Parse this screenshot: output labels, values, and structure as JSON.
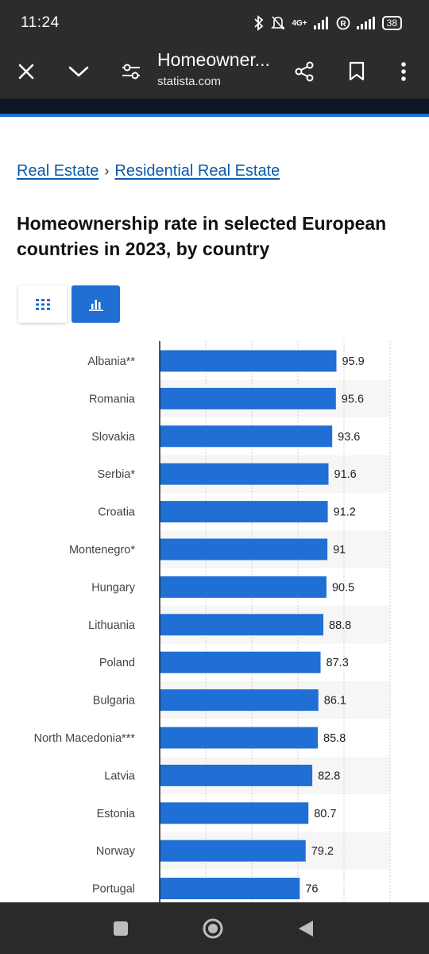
{
  "status_bar": {
    "time": "11:24",
    "network_label": "4G+",
    "battery": "38",
    "icons": [
      "bluetooth-icon",
      "bell-off-icon",
      "signal-icon",
      "registered-icon",
      "signal-icon",
      "battery-icon"
    ]
  },
  "app_bar": {
    "title": "Homeowner...",
    "url": "statista.com",
    "icons": [
      "close-icon",
      "chevron-down-icon",
      "page-settings-icon",
      "share-icon",
      "bookmark-icon",
      "more-vert-icon"
    ]
  },
  "breadcrumb": {
    "items": [
      "Real Estate",
      "Residential Real Estate"
    ],
    "separator": "›"
  },
  "page_title": "Homeownership rate in selected European countries in 2023, by country",
  "view_toggle": {
    "active": "chart",
    "icons": [
      "table-grid-icon",
      "bar-chart-icon"
    ]
  },
  "colors": {
    "bar": "#1f6fd4",
    "accent": "#1f6fd4",
    "link": "#0b5aa8",
    "chrome": "#2c2c2c"
  },
  "chart_data": {
    "type": "bar",
    "orientation": "horizontal",
    "categories": [
      "Albania**",
      "Romania",
      "Slovakia",
      "Serbia*",
      "Croatia",
      "Montenegro*",
      "Hungary",
      "Lithuania",
      "Poland",
      "Bulgaria",
      "North Macedonia***",
      "Latvia",
      "Estonia",
      "Norway",
      "Portugal"
    ],
    "values": [
      95.9,
      95.6,
      93.6,
      91.6,
      91.2,
      91,
      90.5,
      88.8,
      87.3,
      86.1,
      85.8,
      82.8,
      80.7,
      79.2,
      76
    ],
    "data_labels": [
      "95.9",
      "95.6",
      "93.6",
      "91.6",
      "91.2",
      "91",
      "90.5",
      "88.8",
      "87.3",
      "86.1",
      "85.8",
      "82.8",
      "80.7",
      "79.2",
      "76"
    ],
    "xlim": [
      0,
      125
    ],
    "grid": true
  },
  "nav_bar": {
    "icons": [
      "recent-apps-icon",
      "home-icon",
      "back-icon"
    ]
  }
}
